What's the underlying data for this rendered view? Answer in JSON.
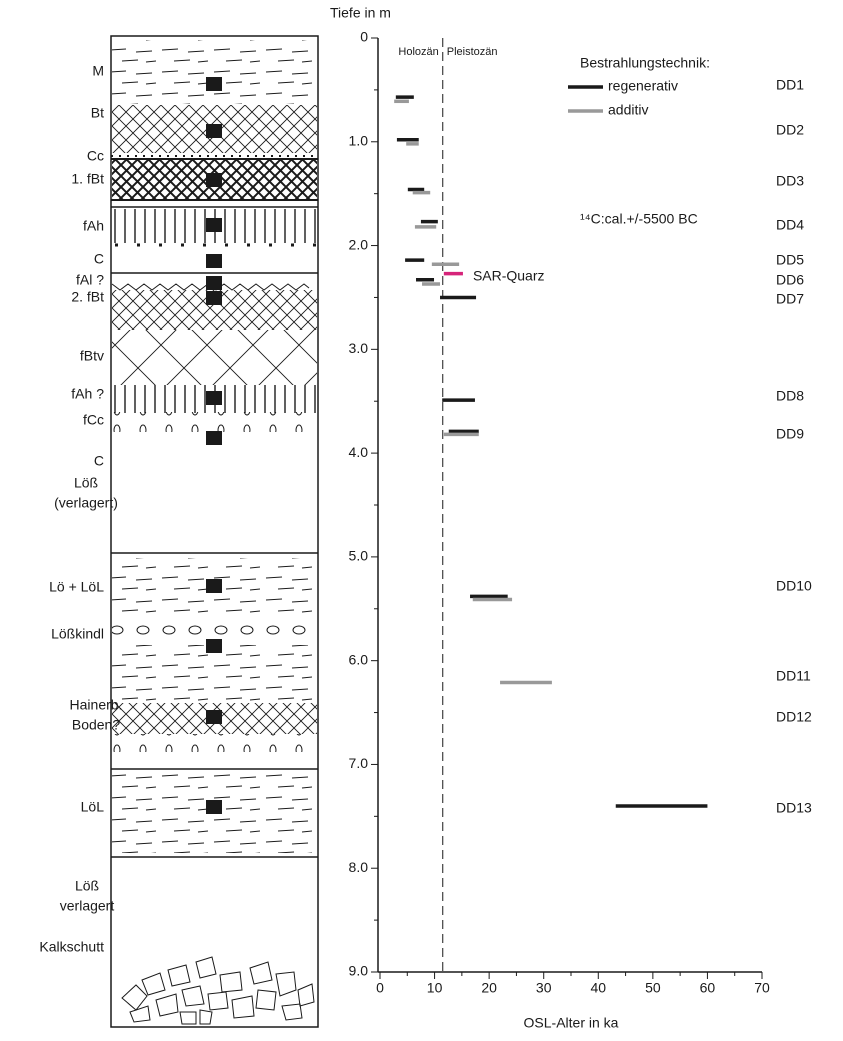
{
  "profile": {
    "layers": [
      {
        "label": [
          "M"
        ]
      },
      {
        "label": [
          "Bt"
        ]
      },
      {
        "label": [
          "Cc"
        ]
      },
      {
        "label": [
          "1. fBt"
        ]
      },
      {
        "label": [
          "fAh"
        ]
      },
      {
        "label": [
          "C"
        ]
      },
      {
        "label": [
          "fAl ?"
        ]
      },
      {
        "label": [
          "2. fBt"
        ]
      },
      {
        "label": [
          "fBtv"
        ]
      },
      {
        "label": [
          "fAh ?"
        ]
      },
      {
        "label": [
          "fCc"
        ]
      },
      {
        "label": [
          "C"
        ]
      },
      {
        "label": [
          "Löß",
          "(verlagert)"
        ]
      },
      {
        "label": [
          "Lö + LöL"
        ]
      },
      {
        "label": [
          "Lößkindl"
        ]
      },
      {
        "label": [
          "Hainerb.",
          "Boden?"
        ]
      },
      {
        "label": [
          "LöL"
        ]
      },
      {
        "label": [
          "Löß",
          "verlagert"
        ]
      },
      {
        "label": [
          "Kalkschutt"
        ]
      }
    ]
  },
  "chart_data": {
    "type": "range",
    "y_label": "Tiefe in m",
    "x_label": "OSL-Alter in ka",
    "ylim": [
      0,
      9
    ],
    "yticks": [
      0,
      {
        "value": 1,
        "label": "1.0"
      },
      {
        "value": 2,
        "label": "2.0"
      },
      {
        "value": 3,
        "label": "3.0"
      },
      {
        "value": 4,
        "label": "4.0"
      },
      {
        "value": 5,
        "label": "5.0"
      },
      {
        "value": 6,
        "label": "6.0"
      },
      {
        "value": 7,
        "label": "7.0"
      },
      {
        "value": 8,
        "label": "8.0"
      },
      {
        "value": 9,
        "label": "9.0"
      }
    ],
    "yminorticks": [
      0.5,
      1.5,
      2.5,
      3.5,
      4.5,
      5.5,
      6.5,
      7.5,
      8.5
    ],
    "xlim": [
      0,
      70
    ],
    "xticks": [
      0,
      10,
      20,
      30,
      40,
      50,
      60,
      70
    ],
    "xminorticks": [
      5,
      15,
      25,
      35,
      45,
      55,
      65
    ],
    "boundary": 11.5,
    "period_labels": [
      "Holozän",
      "Pleistozän"
    ],
    "legend_title": "Bestrahlungstechnik:",
    "annotation": "¹⁴C:cal.+/-5500 BC",
    "samples": [
      "DD1",
      "DD2",
      "DD3",
      "DD4",
      "DD5",
      "DD6",
      "DD7",
      "DD8",
      "DD9",
      "DD10",
      "DD11",
      "DD12",
      "DD13"
    ],
    "series": [
      {
        "name": "regenerativ",
        "color": "#1a1a1a",
        "legend": true,
        "depth": [
          0.57,
          0.98,
          1.46,
          1.77,
          2.14,
          2.33,
          2.5,
          3.49,
          3.79,
          5.38,
          7.4
        ],
        "start": [
          2.9,
          3.1,
          5.1,
          7.5,
          4.6,
          6.6,
          11.0,
          11.4,
          12.6,
          16.5,
          43.2
        ],
        "end": [
          6.2,
          7.1,
          8.1,
          10.6,
          8.1,
          9.9,
          17.6,
          17.4,
          18.1,
          23.4,
          60.0
        ]
      },
      {
        "name": "additiv",
        "color": "#999999",
        "legend": true,
        "depth": [
          0.61,
          1.02,
          1.49,
          1.82,
          2.18,
          2.37,
          3.82,
          5.41,
          6.21
        ],
        "start": [
          2.6,
          4.8,
          6.0,
          6.4,
          9.5,
          7.7,
          11.7,
          17.0,
          22.0
        ],
        "end": [
          5.3,
          7.1,
          9.2,
          10.3,
          14.5,
          11.0,
          18.1,
          24.2,
          31.5
        ]
      },
      {
        "name": "SAR-Quarz",
        "color": "#d6247a",
        "legend": false,
        "depth": [
          2.27
        ],
        "start": [
          11.7
        ],
        "end": [
          15.2
        ]
      }
    ]
  }
}
